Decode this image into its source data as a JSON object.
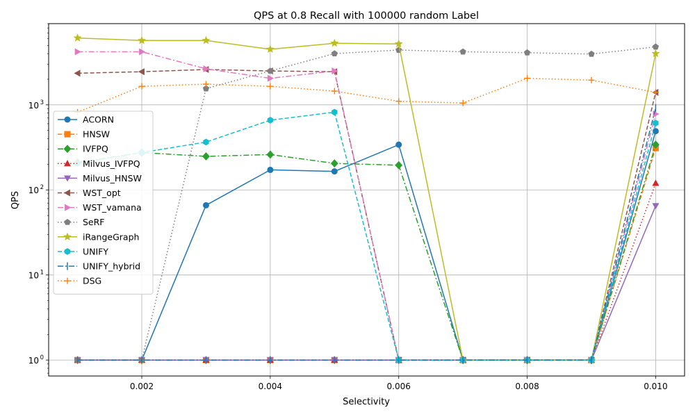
{
  "chart_data": {
    "type": "line",
    "title": "QPS at 0.8 Recall with 100000 random Label",
    "xlabel": "Selectivity",
    "ylabel": "QPS",
    "x": [
      0.001,
      0.002,
      0.003,
      0.004,
      0.005,
      0.006,
      0.007,
      0.008,
      0.009,
      0.01
    ],
    "xlim": [
      0.00055,
      0.01045
    ],
    "ylim": [
      0.65,
      9000
    ],
    "yscale": "log",
    "grid": true,
    "legend_position": "center-left",
    "x_ticks": [
      0.002,
      0.004,
      0.006,
      0.008,
      0.01
    ],
    "x_tick_labels": [
      "0.002",
      "0.004",
      "0.006",
      "0.008",
      "0.010"
    ],
    "y_ticks": [
      1,
      10,
      100,
      1000
    ],
    "y_tick_labels": [
      "10",
      "10",
      "10",
      "10"
    ],
    "y_tick_exponents": [
      "0",
      "1",
      "2",
      "3"
    ],
    "series": [
      {
        "name": "ACORN",
        "color": "#1f77b4",
        "dash": "",
        "marker": "circle",
        "values": [
          1,
          1,
          66,
          172,
          165,
          340,
          1,
          1,
          1,
          490
        ]
      },
      {
        "name": "HNSW",
        "color": "#ff7f0e",
        "dash": "6,3",
        "marker": "square",
        "values": [
          1,
          1,
          1,
          1,
          1,
          1,
          1,
          1,
          1,
          310
        ]
      },
      {
        "name": "IVFPQ",
        "color": "#2ca02c",
        "dash": "8,3,2,3",
        "marker": "diamond",
        "values": [
          210,
          275,
          248,
          260,
          205,
          195,
          1,
          1,
          1,
          340
        ]
      },
      {
        "name": "Milvus_IVFPQ",
        "color": "#d62728",
        "dash": "1.5,3",
        "marker": "triangle-up",
        "values": [
          1,
          1,
          1,
          1,
          1,
          1,
          1,
          1,
          1,
          120
        ]
      },
      {
        "name": "Milvus_HNSW",
        "color": "#9467bd",
        "dash": "",
        "marker": "triangle-down",
        "values": [
          1,
          1,
          1,
          1,
          1,
          1,
          1,
          1,
          1,
          65
        ]
      },
      {
        "name": "WST_opt",
        "color": "#8c564b",
        "dash": "6,3",
        "marker": "triangle-left",
        "values": [
          2350,
          2450,
          2600,
          2500,
          2450,
          1,
          1,
          1,
          1,
          1400
        ]
      },
      {
        "name": "WST_vamana",
        "color": "#e377c2",
        "dash": "8,3,2,3",
        "marker": "triangle-right",
        "values": [
          4200,
          4200,
          2650,
          2050,
          2500,
          1,
          1,
          1,
          1,
          780
        ]
      },
      {
        "name": "SeRF",
        "color": "#7f7f7f",
        "dash": "1.5,3",
        "marker": "pentagon",
        "values": [
          1,
          1,
          1550,
          2500,
          4000,
          4400,
          4200,
          4100,
          3950,
          4800
        ]
      },
      {
        "name": "iRangeGraph",
        "color": "#bcbd22",
        "dash": "",
        "marker": "star",
        "values": [
          6100,
          5700,
          5700,
          4500,
          5300,
          5200,
          1,
          1,
          1,
          4000
        ]
      },
      {
        "name": "UNIFY",
        "color": "#17becf",
        "dash": "6,3",
        "marker": "hexagon",
        "values": [
          205,
          275,
          365,
          660,
          820,
          1,
          1,
          1,
          1,
          610
        ]
      },
      {
        "name": "UNIFY_hybrid",
        "color": "#1f77b4",
        "dash": "8,3,2,3",
        "marker": "vline",
        "values": [
          1,
          1,
          1,
          1,
          1,
          1,
          1,
          1,
          1,
          920
        ]
      },
      {
        "name": "DSG",
        "color": "#ff7f0e",
        "dash": "1.5,3",
        "marker": "plus",
        "values": [
          820,
          1650,
          1750,
          1650,
          1450,
          1100,
          1050,
          2050,
          1950,
          1400
        ]
      }
    ]
  }
}
